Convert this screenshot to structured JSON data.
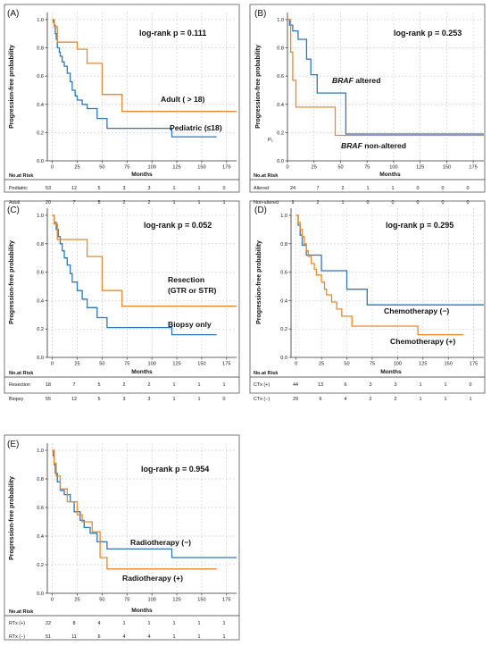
{
  "figure": {
    "panels": [
      {
        "label": "(A)",
        "pvalue_text": "log-rank p = 0.111",
        "ylabel": "Progression-free probability",
        "xlabel": "Months",
        "risk_title": "No.at Risk",
        "legend": [
          {
            "series": 1,
            "parts": [
              {
                "text": "Adult ( > 18)",
                "italic": false
              }
            ]
          },
          {
            "series": 0,
            "parts": [
              {
                "text": "Pediatric (≤18)",
                "italic": false
              }
            ]
          }
        ],
        "risk_rows": [
          {
            "label": "Pediatric",
            "values": [
              53,
              12,
              5,
              3,
              3,
              1,
              1,
              0
            ]
          },
          {
            "label": "Adult",
            "values": [
              20,
              7,
              5,
              2,
              2,
              1,
              1,
              1
            ]
          }
        ]
      },
      {
        "label": "(B)",
        "pvalue_text": "log-rank p = 0.253",
        "ylabel": "Progression-free probability",
        "xlabel": "Months",
        "risk_title": "No.at Risk",
        "stray_text": "P₁",
        "legend": [
          {
            "series": 0,
            "parts": [
              {
                "text": "BRAF",
                "italic": true
              },
              {
                "text": " altered",
                "italic": false
              }
            ]
          },
          {
            "series": 1,
            "parts": [
              {
                "text": "BRAF",
                "italic": true
              },
              {
                "text": " non-altered",
                "italic": false
              }
            ]
          }
        ],
        "risk_rows": [
          {
            "label": "Altered",
            "values": [
              24,
              7,
              2,
              1,
              1,
              0,
              0,
              0
            ]
          },
          {
            "label": "Non-altered",
            "values": [
              9,
              2,
              1,
              0,
              0,
              0,
              0,
              0
            ]
          }
        ]
      },
      {
        "label": "(C)",
        "pvalue_text": "log-rank p = 0.052",
        "ylabel": "Progression-free probability",
        "xlabel": "Months",
        "risk_title": "No.at Risk",
        "legend": [
          {
            "series": 1,
            "parts": [
              {
                "text": "Resection",
                "italic": false
              }
            ],
            "line2": "(GTR or STR)"
          },
          {
            "series": 0,
            "parts": [
              {
                "text": "Biopsy only",
                "italic": false
              }
            ]
          }
        ],
        "risk_rows": [
          {
            "label": "Resection",
            "values": [
              18,
              7,
              5,
              2,
              2,
              1,
              1,
              1
            ]
          },
          {
            "label": "Biopsy",
            "values": [
              55,
              12,
              5,
              3,
              3,
              1,
              1,
              0
            ]
          }
        ]
      },
      {
        "label": "(D)",
        "pvalue_text": "log-rank p = 0.295",
        "ylabel": "Progression-free probability",
        "xlabel": "Months",
        "risk_title": "No.at Risk",
        "legend": [
          {
            "series": 0,
            "parts": [
              {
                "text": "Chemotherapy (−)",
                "italic": false
              }
            ]
          },
          {
            "series": 1,
            "parts": [
              {
                "text": "Chemotherapy (+)",
                "italic": false
              }
            ]
          }
        ],
        "risk_rows": [
          {
            "label": "CTx (+)",
            "values": [
              44,
              13,
              6,
              3,
              3,
              1,
              1,
              0
            ]
          },
          {
            "label": "CTx (−)",
            "values": [
              29,
              6,
              4,
              2,
              2,
              1,
              1,
              1
            ]
          }
        ]
      },
      {
        "label": "(E)",
        "pvalue_text": "log-rank p = 0.954",
        "ylabel": "Progression-free probability",
        "xlabel": "Months",
        "risk_title": "No.at Risk",
        "legend": [
          {
            "series": 0,
            "parts": [
              {
                "text": "Radiotherapy (−)",
                "italic": false
              }
            ]
          },
          {
            "series": 1,
            "parts": [
              {
                "text": "Radiotherapy (+)",
                "italic": false
              }
            ]
          }
        ],
        "risk_rows": [
          {
            "label": "RTx (+)",
            "values": [
              22,
              8,
              4,
              1,
              1,
              1,
              1,
              1
            ]
          },
          {
            "label": "RTx (−)",
            "values": [
              51,
              11,
              6,
              4,
              4,
              1,
              1,
              1
            ]
          }
        ]
      }
    ]
  },
  "chart_data": [
    {
      "type": "line",
      "title": "(A)",
      "xlabel": "Months",
      "ylabel": "Progression-free probability",
      "xlim": [
        -5,
        185
      ],
      "ylim": [
        0,
        1.05
      ],
      "xticks": [
        0,
        25,
        50,
        75,
        100,
        125,
        150,
        175
      ],
      "yticks": [
        0.0,
        0.2,
        0.4,
        0.6,
        0.8,
        1.0
      ],
      "grid": true,
      "series": [
        {
          "name": "Pediatric (≤18)",
          "color": "#2e78b7",
          "x": [
            0,
            1,
            2,
            3,
            4,
            5,
            7,
            8,
            10,
            12,
            15,
            18,
            20,
            23,
            25,
            30,
            35,
            45,
            55,
            120,
            165
          ],
          "y": [
            1.0,
            0.98,
            0.96,
            0.9,
            0.86,
            0.8,
            0.77,
            0.74,
            0.7,
            0.67,
            0.62,
            0.56,
            0.5,
            0.46,
            0.43,
            0.4,
            0.37,
            0.3,
            0.23,
            0.17,
            0.17
          ]
        },
        {
          "name": "Adult ( > 18)",
          "color": "#e8892b",
          "x": [
            0,
            2,
            5,
            25,
            35,
            50,
            70,
            185
          ],
          "y": [
            1.0,
            0.95,
            0.84,
            0.79,
            0.69,
            0.47,
            0.35,
            0.35
          ]
        }
      ]
    },
    {
      "type": "line",
      "title": "(B)",
      "xlabel": "Months",
      "ylabel": "Progression-free probability",
      "xlim": [
        0,
        185
      ],
      "ylim": [
        0,
        1.05
      ],
      "xticks": [
        0,
        25,
        50,
        75,
        100,
        125,
        150,
        175
      ],
      "yticks": [
        0.0,
        0.2,
        0.4,
        0.6,
        0.8,
        1.0
      ],
      "grid": true,
      "series": [
        {
          "name": "BRAF altered",
          "color": "#2e78b7",
          "x": [
            0,
            2,
            5,
            10,
            18,
            22,
            28,
            55,
            185
          ],
          "y": [
            1.0,
            0.96,
            0.92,
            0.86,
            0.72,
            0.61,
            0.48,
            0.19,
            0.19
          ]
        },
        {
          "name": "BRAF non-altered",
          "color": "#e8892b",
          "x": [
            0,
            3,
            5,
            8,
            40,
            45,
            185
          ],
          "y": [
            1.0,
            0.77,
            0.57,
            0.38,
            0.38,
            0.18,
            0.18
          ]
        }
      ]
    },
    {
      "type": "line",
      "title": "(C)",
      "xlabel": "Months",
      "ylabel": "Progression-free probability",
      "xlim": [
        -5,
        185
      ],
      "ylim": [
        0,
        1.05
      ],
      "xticks": [
        0,
        25,
        50,
        75,
        100,
        125,
        150,
        175
      ],
      "yticks": [
        0.0,
        0.2,
        0.4,
        0.6,
        0.8,
        1.0
      ],
      "grid": true,
      "series": [
        {
          "name": "Biopsy only",
          "color": "#2e78b7",
          "x": [
            0,
            2,
            4,
            6,
            8,
            10,
            12,
            15,
            18,
            20,
            25,
            30,
            35,
            45,
            55,
            120,
            165
          ],
          "y": [
            1.0,
            0.95,
            0.9,
            0.85,
            0.8,
            0.75,
            0.7,
            0.65,
            0.59,
            0.53,
            0.47,
            0.41,
            0.35,
            0.28,
            0.21,
            0.16,
            0.16
          ]
        },
        {
          "name": "Resection (GTR or STR)",
          "color": "#e8892b",
          "x": [
            0,
            2,
            5,
            25,
            35,
            50,
            70,
            185
          ],
          "y": [
            1.0,
            0.94,
            0.83,
            0.83,
            0.71,
            0.47,
            0.36,
            0.36
          ]
        }
      ]
    },
    {
      "type": "line",
      "title": "(D)",
      "xlabel": "Months",
      "ylabel": "Progression-free probability",
      "xlim": [
        -5,
        185
      ],
      "ylim": [
        0,
        1.05
      ],
      "xticks": [
        0,
        25,
        50,
        75,
        100,
        125,
        150,
        175
      ],
      "yticks": [
        0.0,
        0.2,
        0.4,
        0.6,
        0.8,
        1.0
      ],
      "grid": true,
      "series": [
        {
          "name": "Chemotherapy (−)",
          "color": "#2e78b7",
          "x": [
            0,
            2,
            4,
            6,
            10,
            25,
            50,
            70,
            185
          ],
          "y": [
            1.0,
            0.93,
            0.86,
            0.79,
            0.72,
            0.61,
            0.48,
            0.37,
            0.37
          ]
        },
        {
          "name": "Chemotherapy (+)",
          "color": "#e8892b",
          "x": [
            0,
            2,
            4,
            6,
            8,
            10,
            12,
            15,
            18,
            20,
            25,
            28,
            30,
            35,
            40,
            45,
            55,
            120,
            165
          ],
          "y": [
            1.0,
            0.95,
            0.9,
            0.85,
            0.8,
            0.75,
            0.71,
            0.66,
            0.62,
            0.58,
            0.53,
            0.48,
            0.44,
            0.39,
            0.34,
            0.29,
            0.22,
            0.16,
            0.16
          ]
        }
      ]
    },
    {
      "type": "line",
      "title": "(E)",
      "xlabel": "Months",
      "ylabel": "Progression-free probability",
      "xlim": [
        -5,
        185
      ],
      "ylim": [
        0,
        1.05
      ],
      "xticks": [
        0,
        25,
        50,
        75,
        100,
        125,
        150,
        175
      ],
      "yticks": [
        0.0,
        0.2,
        0.4,
        0.6,
        0.8,
        1.0
      ],
      "grid": true,
      "series": [
        {
          "name": "Radiotherapy (−)",
          "color": "#2e78b7",
          "x": [
            0,
            1,
            2,
            3,
            5,
            8,
            12,
            18,
            22,
            28,
            32,
            38,
            45,
            55,
            120,
            185
          ],
          "y": [
            1.0,
            0.96,
            0.9,
            0.84,
            0.78,
            0.72,
            0.69,
            0.64,
            0.57,
            0.51,
            0.46,
            0.42,
            0.36,
            0.31,
            0.25,
            0.25
          ]
        },
        {
          "name": "Radiotherapy (+)",
          "color": "#e8892b",
          "x": [
            0,
            2,
            4,
            8,
            15,
            25,
            30,
            40,
            48,
            55,
            165
          ],
          "y": [
            1.0,
            0.91,
            0.82,
            0.73,
            0.64,
            0.55,
            0.5,
            0.43,
            0.25,
            0.17,
            0.17
          ]
        }
      ]
    }
  ]
}
